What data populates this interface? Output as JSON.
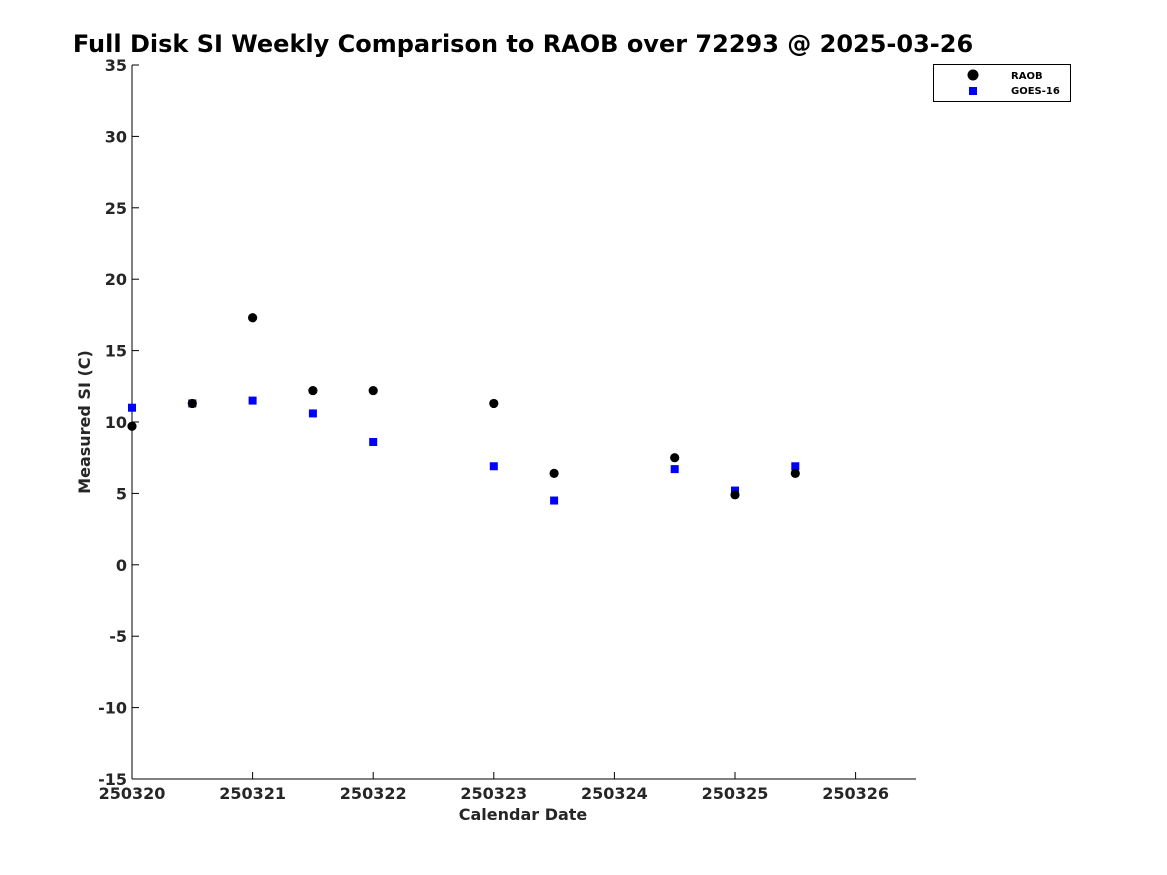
{
  "chart_data": {
    "type": "scatter",
    "title": "Full Disk SI Weekly Comparison to RAOB over 72293 @ 2025-03-26",
    "xlabel": "Calendar Date",
    "ylabel": "Measured SI (C)",
    "xlim": [
      "250320",
      "250326.5"
    ],
    "ylim": [
      -15,
      35
    ],
    "x_ticks": [
      "250320",
      "250321",
      "250322",
      "250323",
      "250324",
      "250325",
      "250326"
    ],
    "y_ticks": [
      -15,
      -10,
      -5,
      0,
      5,
      10,
      15,
      20,
      25,
      30,
      35
    ],
    "grid": false,
    "legend_position": "top-right",
    "series": [
      {
        "name": "RAOB",
        "marker": "circle",
        "color": "#000000",
        "points": [
          {
            "x": "250320 00Z",
            "y": 9.7
          },
          {
            "x": "250320 12Z",
            "y": 11.3
          },
          {
            "x": "250321 00Z",
            "y": 17.3
          },
          {
            "x": "250321 12Z",
            "y": 12.2
          },
          {
            "x": "250322 00Z",
            "y": 12.2
          },
          {
            "x": "250323 00Z",
            "y": 11.3
          },
          {
            "x": "250323 12Z",
            "y": 6.4
          },
          {
            "x": "250324 12Z",
            "y": 7.5
          },
          {
            "x": "250325 00Z",
            "y": 4.9
          },
          {
            "x": "250325 12Z",
            "y": 6.4
          }
        ]
      },
      {
        "name": "GOES-16",
        "marker": "square",
        "color": "#0000ff",
        "points": [
          {
            "x": "250320 00Z",
            "y": 11.0
          },
          {
            "x": "250320 12Z",
            "y": 11.3
          },
          {
            "x": "250321 00Z",
            "y": 11.5
          },
          {
            "x": "250321 12Z",
            "y": 10.6
          },
          {
            "x": "250322 00Z",
            "y": 8.6
          },
          {
            "x": "250323 00Z",
            "y": 6.9
          },
          {
            "x": "250323 12Z",
            "y": 4.5
          },
          {
            "x": "250324 12Z",
            "y": 6.7
          },
          {
            "x": "250325 00Z",
            "y": 5.2
          },
          {
            "x": "250325 12Z",
            "y": 6.9
          }
        ]
      }
    ]
  }
}
